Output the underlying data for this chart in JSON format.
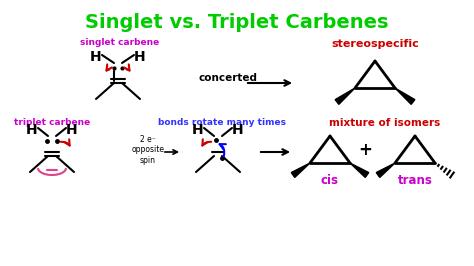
{
  "title": "Singlet vs. Triplet Carbenes",
  "title_color": "#00cc00",
  "title_fontsize": 14,
  "bg_color": "#ffffff",
  "singlet_label": "singlet carbene",
  "singlet_label_color": "#cc00cc",
  "triplet_label": "triplet carbene",
  "triplet_label_color": "#cc00cc",
  "bonds_rotate_label": "bonds rotate many times",
  "bonds_rotate_color": "#3333ff",
  "concerted_label": "concerted",
  "stereospecific_label": "stereospecific",
  "stereospecific_color": "#cc0000",
  "mixture_label": "mixture of isomers",
  "mixture_color": "#cc0000",
  "cis_label": "cis",
  "cis_color": "#cc00cc",
  "trans_label": "trans",
  "trans_color": "#cc00cc",
  "spin_label": "2 e⁻\nopposite\nspin"
}
